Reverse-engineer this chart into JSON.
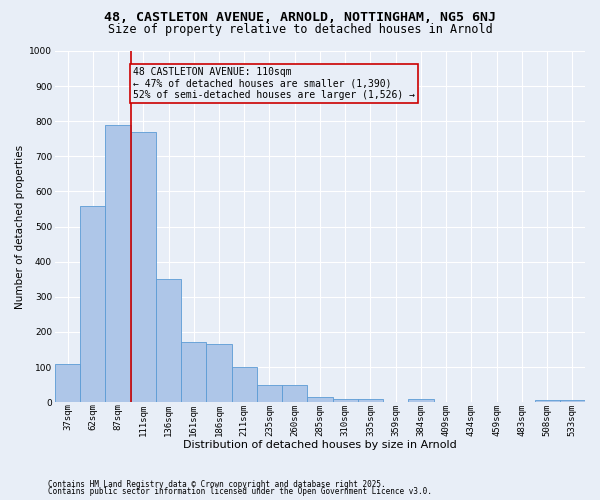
{
  "title1": "48, CASTLETON AVENUE, ARNOLD, NOTTINGHAM, NG5 6NJ",
  "title2": "Size of property relative to detached houses in Arnold",
  "xlabel": "Distribution of detached houses by size in Arnold",
  "ylabel": "Number of detached properties",
  "categories": [
    "37sqm",
    "62sqm",
    "87sqm",
    "111sqm",
    "136sqm",
    "161sqm",
    "186sqm",
    "211sqm",
    "235sqm",
    "260sqm",
    "285sqm",
    "310sqm",
    "335sqm",
    "359sqm",
    "384sqm",
    "409sqm",
    "434sqm",
    "459sqm",
    "483sqm",
    "508sqm",
    "533sqm"
  ],
  "values": [
    110,
    560,
    790,
    770,
    350,
    170,
    165,
    100,
    50,
    50,
    15,
    10,
    10,
    0,
    10,
    0,
    0,
    0,
    0,
    5,
    5
  ],
  "bar_color": "#aec6e8",
  "bar_edge_color": "#5b9bd5",
  "vline_color": "#cc0000",
  "vline_x_index": 2.5,
  "annotation_text": "48 CASTLETON AVENUE: 110sqm\n← 47% of detached houses are smaller (1,390)\n52% of semi-detached houses are larger (1,526) →",
  "annotation_box_color": "#cc0000",
  "ylim": [
    0,
    1000
  ],
  "yticks": [
    0,
    100,
    200,
    300,
    400,
    500,
    600,
    700,
    800,
    900,
    1000
  ],
  "footer1": "Contains HM Land Registry data © Crown copyright and database right 2025.",
  "footer2": "Contains public sector information licensed under the Open Government Licence v3.0.",
  "bg_color": "#e8eef7",
  "grid_color": "#ffffff",
  "title1_fontsize": 9.5,
  "title2_fontsize": 8.5,
  "xlabel_fontsize": 8,
  "ylabel_fontsize": 7.5,
  "tick_fontsize": 6.5,
  "annot_fontsize": 7,
  "footer_fontsize": 5.5
}
